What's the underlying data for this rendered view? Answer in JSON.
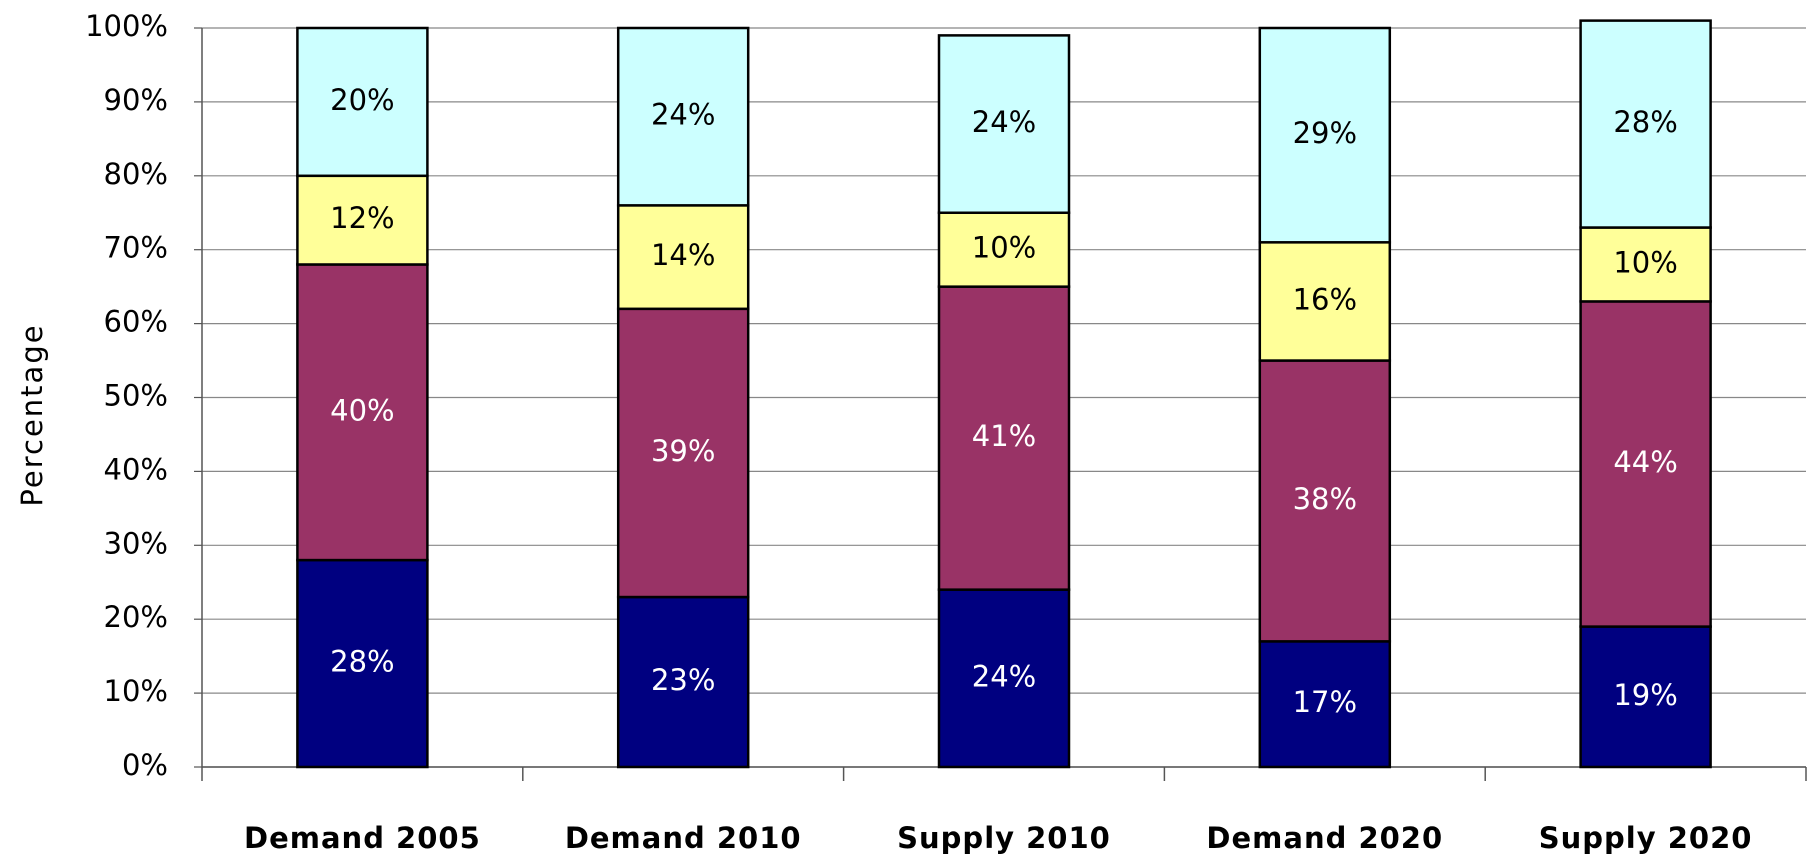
{
  "chart_data": {
    "type": "stacked_bar",
    "y_label": "Percentage",
    "categories": [
      "Demand 2005",
      "Demand 2010",
      "Supply 2010",
      "Demand 2020",
      "Supply 2020"
    ],
    "series": [
      {
        "color": "#000080",
        "label_color": "#ffffff",
        "values": [
          28,
          23,
          24,
          17,
          19
        ],
        "value_labels": [
          "28%",
          "23%",
          "24%",
          "17%",
          "19%"
        ]
      },
      {
        "color": "#993366",
        "label_color": "#ffffff",
        "values": [
          40,
          39,
          41,
          38,
          44
        ],
        "value_labels": [
          "40%",
          "39%",
          "41%",
          "38%",
          "44%"
        ]
      },
      {
        "color": "#ffff99",
        "label_color": "#000000",
        "values": [
          12,
          14,
          10,
          16,
          10
        ],
        "value_labels": [
          "12%",
          "14%",
          "10%",
          "16%",
          "10%"
        ]
      },
      {
        "color": "#ccffff",
        "label_color": "#000000",
        "values": [
          20,
          24,
          24,
          29,
          28
        ],
        "value_labels": [
          "20%",
          "24%",
          "24%",
          "29%",
          "28%"
        ]
      }
    ],
    "ylim": [
      0,
      100
    ],
    "yticks": [
      {
        "value": 0,
        "label": "0%"
      },
      {
        "value": 10,
        "label": "10%"
      },
      {
        "value": 20,
        "label": "20%"
      },
      {
        "value": 30,
        "label": "30%"
      },
      {
        "value": 40,
        "label": "40%"
      },
      {
        "value": 50,
        "label": "50%"
      },
      {
        "value": 60,
        "label": "60%"
      },
      {
        "value": 70,
        "label": "70%"
      },
      {
        "value": 80,
        "label": "80%"
      },
      {
        "value": 90,
        "label": "90%"
      },
      {
        "value": 100,
        "label": "100%"
      }
    ],
    "grid": true
  }
}
